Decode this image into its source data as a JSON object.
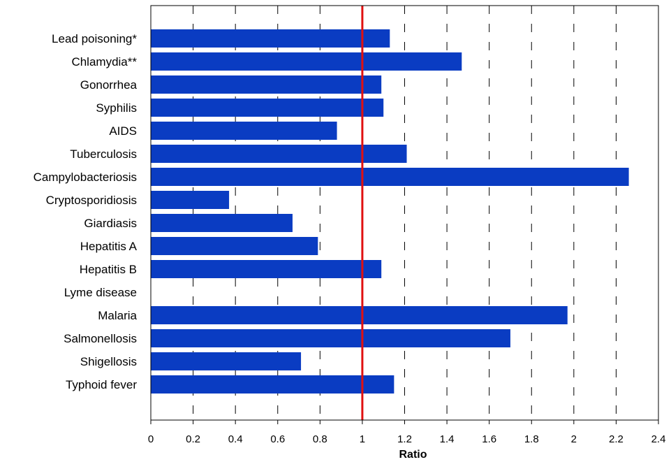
{
  "chart_data": {
    "type": "bar",
    "orientation": "horizontal",
    "categories": [
      "Lead poisoning*",
      "Chlamydia**",
      "Gonorrhea",
      "Syphilis",
      "AIDS",
      "Tuberculosis",
      "Campylobacteriosis",
      "Cryptosporidiosis",
      "Giardiasis",
      "Hepatitis A",
      "Hepatitis B",
      "Lyme disease",
      "Malaria",
      "Salmonellosis",
      "Shigellosis",
      "Typhoid fever"
    ],
    "values": [
      1.13,
      1.47,
      1.09,
      1.1,
      0.88,
      1.21,
      2.26,
      0.37,
      0.67,
      0.79,
      1.09,
      0.0,
      1.97,
      1.7,
      0.71,
      1.15
    ],
    "title": "",
    "xlabel": "Ratio",
    "ylabel": "",
    "xlim": [
      0,
      2.4
    ],
    "xticks": [
      "0",
      "0.2",
      "0.4",
      "0.6",
      "0.8",
      "1",
      "1.2",
      "1.4",
      "1.6",
      "1.8",
      "2",
      "2.2",
      "2.4"
    ],
    "reference_line": 1,
    "grid": "vertical dashed",
    "legend": "none",
    "colors": {
      "bar": "#0a3cc2",
      "reference_line": "#e01010",
      "grid": "#000000"
    }
  }
}
